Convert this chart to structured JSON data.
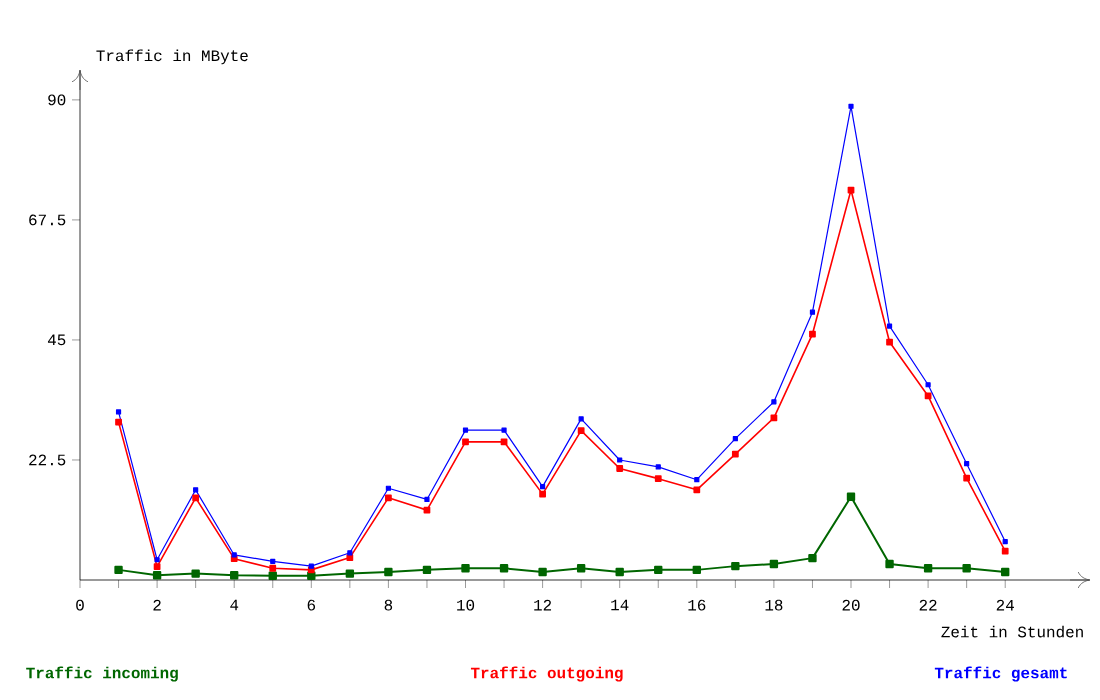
{
  "chart_data": {
    "type": "line",
    "xlabel": "Zeit in Stunden",
    "ylabel": "Traffic in MByte",
    "x": [
      1,
      2,
      3,
      4,
      5,
      6,
      7,
      8,
      9,
      10,
      11,
      12,
      13,
      14,
      15,
      16,
      17,
      18,
      19,
      20,
      21,
      22,
      23,
      24
    ],
    "xlim": [
      0,
      26.2
    ],
    "ylim": [
      0,
      95.6
    ],
    "xticks": [
      0,
      {
        "value": 1,
        "label": null
      },
      2,
      {
        "value": 3,
        "label": null
      },
      4,
      {
        "value": 5,
        "label": null
      },
      6,
      {
        "value": 7,
        "label": null
      },
      8,
      {
        "value": 9,
        "label": null
      },
      10,
      {
        "value": 11,
        "label": null
      },
      12,
      {
        "value": 13,
        "label": null
      },
      14,
      {
        "value": 15,
        "label": null
      },
      16,
      {
        "value": 17,
        "label": null
      },
      18,
      {
        "value": 19,
        "label": null
      },
      20,
      {
        "value": 21,
        "label": null
      },
      22,
      {
        "value": 23,
        "label": null
      },
      24
    ],
    "yticks": [
      22.5,
      45,
      67.5,
      90
    ],
    "marker": "square",
    "legend": "bottom",
    "series": [
      {
        "name": "Traffic incoming",
        "color": "#006600",
        "values": [
          1.9,
          0.9,
          1.2,
          0.9,
          0.8,
          0.8,
          1.2,
          1.5,
          1.9,
          2.2,
          2.2,
          1.5,
          2.2,
          1.5,
          1.9,
          1.9,
          2.6,
          3,
          4.1,
          15.6,
          3,
          2.2,
          2.2,
          1.5
        ]
      },
      {
        "name": "Traffic outgoing",
        "color": "#ff0000",
        "values": [
          29.6,
          2.5,
          15.4,
          4.0,
          2.2,
          1.9,
          4.2,
          15.4,
          13.1,
          25.9,
          25.9,
          16.1,
          28,
          20.9,
          19,
          16.9,
          23.6,
          30.4,
          46.1,
          73.1,
          44.6,
          34.5,
          19.1,
          5.4
        ]
      },
      {
        "name": "Traffic gesamt",
        "color": "#0000ff",
        "values": [
          31.5,
          3.8,
          16.9,
          4.7,
          3.5,
          2.6,
          5.1,
          17.2,
          15.1,
          28.1,
          28.1,
          17.5,
          30.2,
          22.5,
          21.2,
          18.8,
          26.5,
          33.4,
          50.2,
          88.8,
          47.6,
          36.6,
          21.8,
          7.2
        ]
      }
    ]
  }
}
